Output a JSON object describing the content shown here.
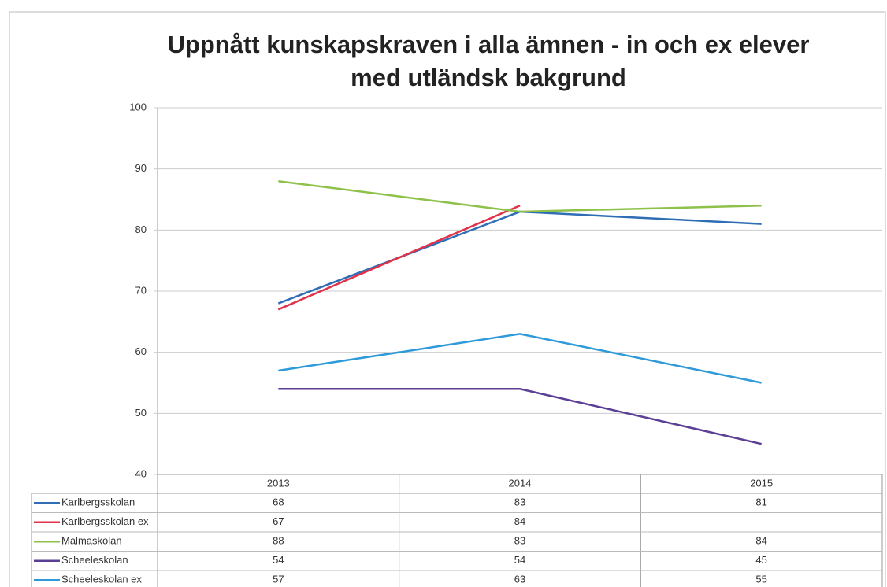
{
  "chart_data": {
    "type": "line",
    "title": "Uppnått kunskapskraven i alla ämnen - in och ex elever med utländsk bakgrund",
    "categories": [
      "2013",
      "2014",
      "2015"
    ],
    "series": [
      {
        "name": "Karlbergsskolan",
        "color": "#2f6db5",
        "values": [
          68,
          83,
          81
        ]
      },
      {
        "name": "Karlbergsskolan ex",
        "color": "#e0334a",
        "values": [
          67,
          84,
          null
        ]
      },
      {
        "name": "Malmaskolan",
        "color": "#8dc14a",
        "values": [
          88,
          83,
          84
        ]
      },
      {
        "name": "Scheeleskolan",
        "color": "#5b3f95",
        "values": [
          54,
          54,
          45
        ]
      },
      {
        "name": "Scheeleskolan ex",
        "color": "#2e9ad9",
        "values": [
          57,
          63,
          55
        ]
      }
    ],
    "ylim": [
      40,
      100
    ],
    "yticks": [
      40,
      50,
      60,
      70,
      80,
      90,
      100
    ],
    "grid": true
  }
}
